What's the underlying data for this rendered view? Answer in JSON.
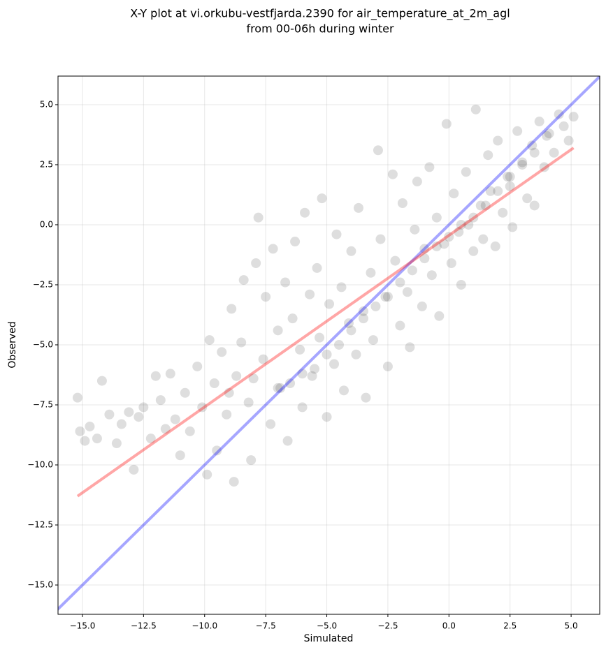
{
  "chart_data": {
    "type": "scatter",
    "title": [
      "X-Y plot at vi.orkubu-vestfjarda.2390 for air_temperature_at_2m_agl",
      "from 00-06h during winter"
    ],
    "xlabel": "Simulated",
    "ylabel": "Observed",
    "xlim": [
      -16.0,
      6.17
    ],
    "ylim": [
      -16.22,
      6.19
    ],
    "grid": true,
    "xticks": [
      {
        "value": -15,
        "label": "−15.0"
      },
      {
        "value": -12.5,
        "label": "−12.5"
      },
      {
        "value": -10,
        "label": "−10.0"
      },
      {
        "value": -7.5,
        "label": "−7.5"
      },
      {
        "value": -5,
        "label": "−5.0"
      },
      {
        "value": -2.5,
        "label": "−2.5"
      },
      {
        "value": 0,
        "label": "0.0"
      },
      {
        "value": 2.5,
        "label": "2.5"
      },
      {
        "value": 5,
        "label": "5.0"
      }
    ],
    "yticks": [
      {
        "value": -15,
        "label": "−15.0"
      },
      {
        "value": -12.5,
        "label": "−12.5"
      },
      {
        "value": -10,
        "label": "−10.0"
      },
      {
        "value": -7.5,
        "label": "−7.5"
      },
      {
        "value": -5,
        "label": "−5.0"
      },
      {
        "value": -2.5,
        "label": "−2.5"
      },
      {
        "value": 0,
        "label": "0.0"
      },
      {
        "value": 2.5,
        "label": "2.5"
      },
      {
        "value": 5,
        "label": "5.0"
      }
    ],
    "series": [
      {
        "type": "scatter",
        "color": "#000000",
        "opacity": 0.13,
        "x": [
          -15.2,
          -15.1,
          -14.9,
          -14.7,
          -14.4,
          -14.2,
          -13.9,
          -13.6,
          -13.4,
          -13.1,
          -12.9,
          -12.7,
          -12.5,
          -12.2,
          -12.0,
          -11.8,
          -11.6,
          -11.4,
          -11.2,
          -11.0,
          -10.8,
          -10.6,
          -10.3,
          -10.1,
          -9.9,
          -9.8,
          -9.6,
          -9.5,
          -9.3,
          -9.1,
          -8.9,
          -8.8,
          -8.7,
          -8.5,
          -8.4,
          -8.2,
          -8.1,
          -7.9,
          -7.8,
          -7.6,
          -7.5,
          -7.3,
          -7.2,
          -7.0,
          -6.9,
          -6.7,
          -6.6,
          -6.4,
          -6.3,
          -6.1,
          -6.0,
          -5.9,
          -5.7,
          -5.6,
          -5.4,
          -5.3,
          -5.2,
          -5.0,
          -4.9,
          -4.7,
          -4.6,
          -4.4,
          -4.3,
          -4.1,
          -4.0,
          -3.8,
          -3.7,
          -3.5,
          -3.4,
          -3.2,
          -3.1,
          -2.9,
          -2.8,
          -2.6,
          -2.5,
          -2.3,
          -2.2,
          -2.0,
          -1.9,
          -1.7,
          -1.6,
          -1.4,
          -1.3,
          -1.1,
          -1.0,
          -0.8,
          -0.7,
          -0.5,
          -0.4,
          -0.2,
          -0.1,
          0.1,
          0.2,
          0.4,
          0.5,
          0.7,
          0.8,
          1.0,
          1.1,
          1.3,
          1.4,
          1.6,
          1.7,
          1.9,
          2.0,
          2.2,
          2.4,
          2.5,
          2.6,
          2.8,
          3.0,
          3.2,
          3.4,
          3.5,
          3.7,
          3.9,
          4.1,
          4.3,
          4.5,
          4.7,
          4.9,
          5.1,
          -5.5,
          -5.0,
          -4.5,
          -4.0,
          -3.5,
          -3.0,
          -2.5,
          -2.0,
          -1.5,
          -1.0,
          -0.5,
          0.0,
          0.5,
          1.0,
          1.5,
          2.0,
          2.5,
          3.0,
          3.5,
          4.0,
          -6.5,
          -6.0,
          -7.0,
          -8.0,
          -9.0
        ],
        "values": [
          -7.2,
          -8.6,
          -9.0,
          -8.4,
          -8.9,
          -6.5,
          -7.9,
          -9.1,
          -8.3,
          -7.8,
          -10.2,
          -8.0,
          -7.6,
          -8.9,
          -6.3,
          -7.3,
          -8.5,
          -6.2,
          -8.1,
          -9.6,
          -7.0,
          -8.6,
          -5.9,
          -7.6,
          -10.4,
          -4.8,
          -6.6,
          -9.4,
          -5.3,
          -7.9,
          -3.5,
          -10.7,
          -6.3,
          -4.9,
          -2.3,
          -7.4,
          -9.8,
          -1.6,
          0.3,
          -5.6,
          -3.0,
          -8.3,
          -1.0,
          -4.4,
          -6.8,
          -2.4,
          -9.0,
          -3.9,
          -0.7,
          -5.2,
          -7.6,
          0.5,
          -2.9,
          -6.3,
          -1.8,
          -4.7,
          1.1,
          -8.0,
          -3.3,
          -5.8,
          -0.4,
          -2.6,
          -6.9,
          -4.1,
          -1.1,
          -5.4,
          0.7,
          -3.6,
          -7.2,
          -2.0,
          -4.8,
          3.1,
          -0.6,
          -3.0,
          -5.9,
          2.1,
          -1.5,
          -4.2,
          0.9,
          -2.8,
          -5.1,
          -0.2,
          1.8,
          -3.4,
          -1.0,
          2.4,
          -2.1,
          0.3,
          -3.8,
          -0.8,
          4.2,
          -1.6,
          1.3,
          -0.3,
          -2.5,
          2.2,
          0.0,
          -1.1,
          4.8,
          0.8,
          -0.6,
          2.9,
          1.4,
          -0.9,
          3.5,
          0.5,
          2.0,
          1.6,
          -0.1,
          3.9,
          2.6,
          1.1,
          3.3,
          0.8,
          4.3,
          2.4,
          3.8,
          3.0,
          4.6,
          4.1,
          3.5,
          4.5,
          -6.0,
          -5.4,
          -5.0,
          -4.4,
          -3.9,
          -3.4,
          -3.0,
          -2.4,
          -1.9,
          -1.4,
          -0.9,
          -0.5,
          0.0,
          0.3,
          0.8,
          1.4,
          2.0,
          2.5,
          3.0,
          3.7,
          -6.6,
          -6.2,
          -6.8,
          -6.4,
          -7.0
        ]
      },
      {
        "type": "line",
        "color": "#0000ff",
        "opacity": 0.35,
        "x": [
          -16.2,
          6.2
        ],
        "values": [
          -16.2,
          6.2
        ]
      },
      {
        "type": "line",
        "color": "#ff0000",
        "opacity": 0.35,
        "x": [
          -15.2,
          5.1
        ],
        "values": [
          -11.3,
          3.2
        ]
      }
    ]
  }
}
